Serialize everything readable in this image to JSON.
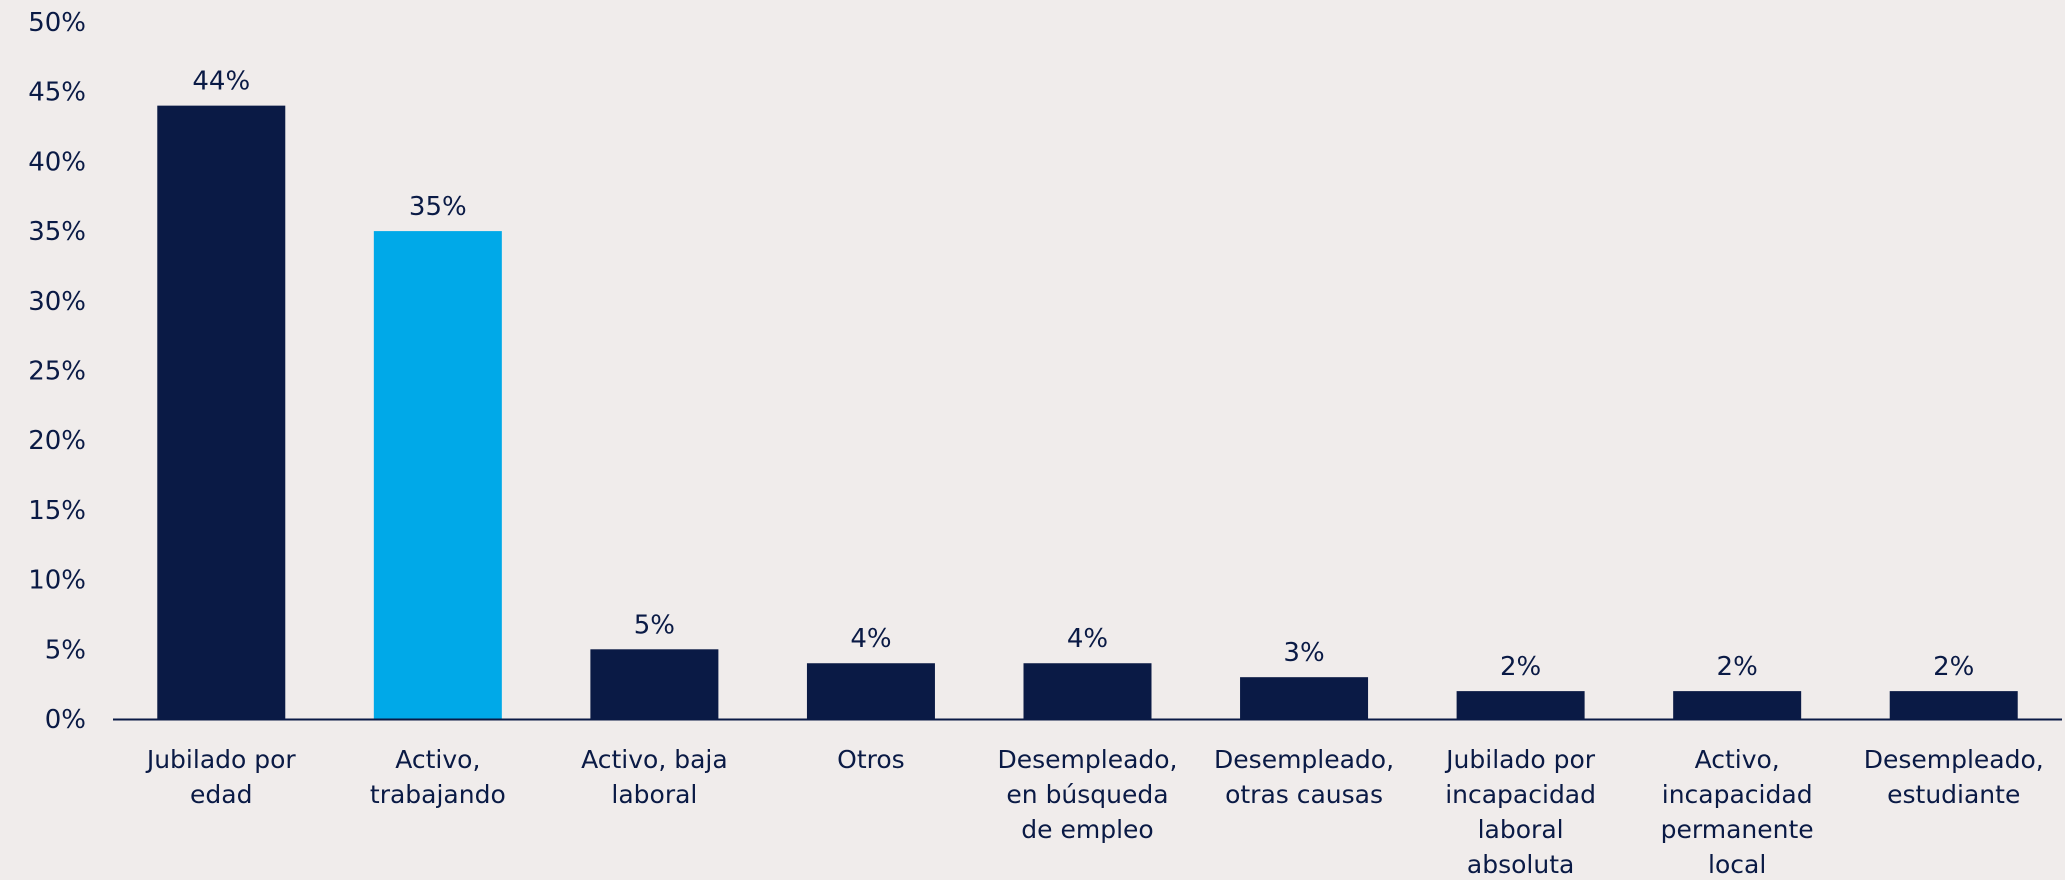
{
  "chart_data": {
    "type": "bar",
    "categories": [
      [
        "Jubilado por",
        "edad"
      ],
      [
        "Activo,",
        "trabajando"
      ],
      [
        "Activo, baja",
        "laboral"
      ],
      [
        "Otros"
      ],
      [
        "Desempleado,",
        "en búsqueda",
        "de empleo"
      ],
      [
        "Desempleado,",
        "otras causas"
      ],
      [
        "Jubilado por",
        "incapacidad",
        "laboral",
        "absoluta"
      ],
      [
        "Activo,",
        "incapacidad",
        "permanente",
        "local"
      ],
      [
        "Desempleado,",
        "estudiante"
      ]
    ],
    "values": [
      44,
      35,
      5,
      4,
      4,
      3,
      2,
      2,
      2
    ],
    "data_labels": [
      "44%",
      "35%",
      "5%",
      "4%",
      "4%",
      "3%",
      "2%",
      "2%",
      "2%"
    ],
    "highlight_index": 1,
    "ylim": [
      0,
      50
    ],
    "yticks": [
      0,
      5,
      10,
      15,
      20,
      25,
      30,
      35,
      40,
      45,
      50
    ],
    "ytick_labels": [
      "0%",
      "5%",
      "10%",
      "15%",
      "20%",
      "25%",
      "30%",
      "35%",
      "40%",
      "45%",
      "50%"
    ],
    "grid": false,
    "legend": "none",
    "colors": {
      "bar": "#0a1a45",
      "highlight": "#00a9e8",
      "text": "#0a1a45",
      "axis": "#0a1a45",
      "background": "#f0eceb"
    }
  }
}
